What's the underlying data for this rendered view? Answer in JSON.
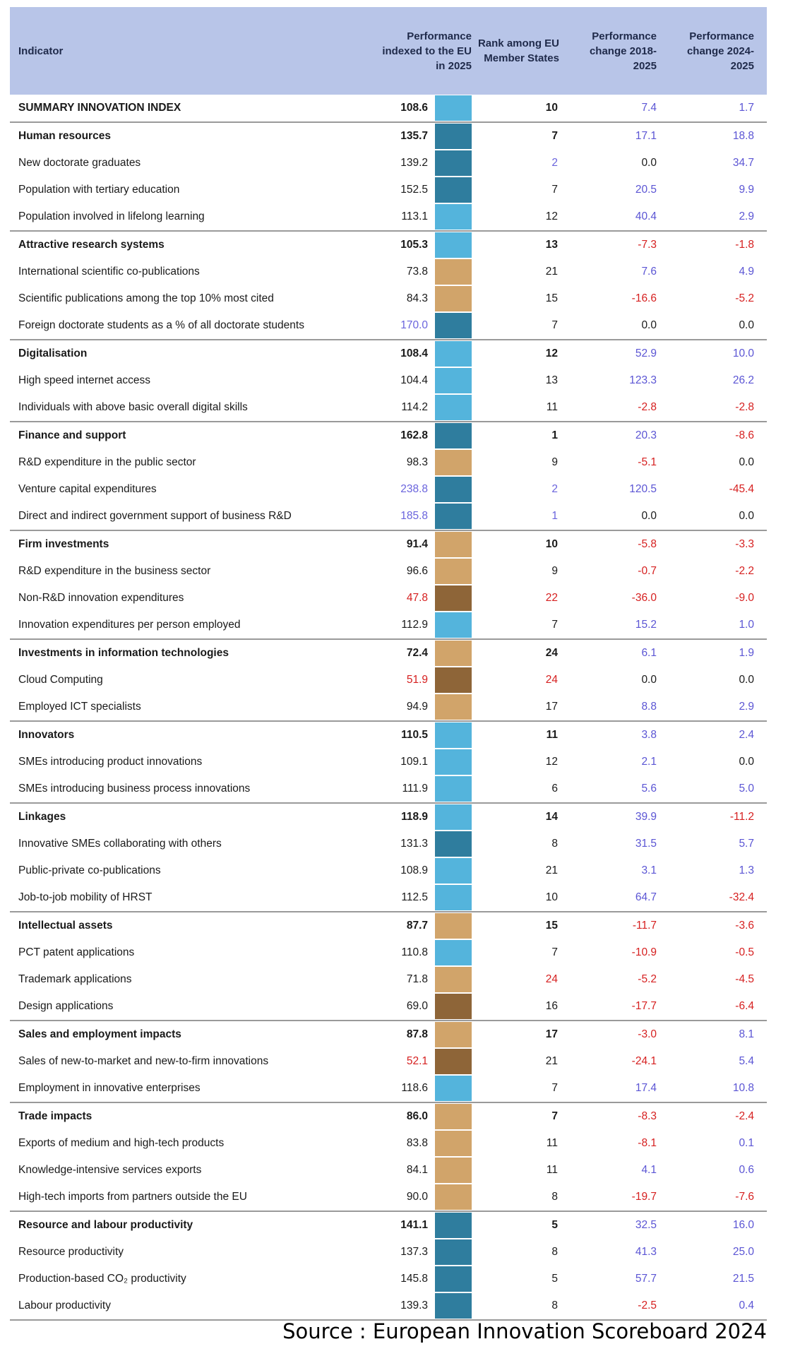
{
  "table": {
    "headers": {
      "indicator": "Indicator",
      "performance": "Performance indexed to the EU in 2025",
      "rank": "Rank among EU Member States",
      "change_2018": "Performance change 2018-2025",
      "change_2024": "Performance change 2024-2025"
    },
    "colors": {
      "header_bg": "#b8c5e8",
      "light_blue": "#54b4dc",
      "dark_blue": "#2f7d9e",
      "light_brown": "#d1a46a",
      "dark_brown": "#8e6538",
      "positive_text": "#5b55d4",
      "negative_text": "#d62020"
    },
    "rows": [
      {
        "name": "SUMMARY INNOVATION INDEX",
        "kind": "summary",
        "perf": "108.6",
        "perf_color": "",
        "bar": "light_blue",
        "rank": "10",
        "rank_color": "",
        "ch1": "7.4",
        "ch2": "1.7"
      },
      {
        "name": "Human resources",
        "kind": "group",
        "perf": "135.7",
        "perf_color": "",
        "bar": "dark_blue",
        "rank": "7",
        "rank_color": "",
        "ch1": "17.1",
        "ch2": "18.8"
      },
      {
        "name": "New doctorate graduates",
        "kind": "item",
        "perf": "139.2",
        "perf_color": "",
        "bar": "dark_blue",
        "rank": "2",
        "rank_color": "hi",
        "ch1": "0.0",
        "ch2": "34.7"
      },
      {
        "name": "Population with tertiary education",
        "kind": "item",
        "perf": "152.5",
        "perf_color": "",
        "bar": "dark_blue",
        "rank": "7",
        "rank_color": "",
        "ch1": "20.5",
        "ch2": "9.9"
      },
      {
        "name": "Population involved in lifelong learning",
        "kind": "item",
        "perf": "113.1",
        "perf_color": "",
        "bar": "light_blue",
        "rank": "12",
        "rank_color": "",
        "ch1": "40.4",
        "ch2": "2.9"
      },
      {
        "name": "Attractive research systems",
        "kind": "group",
        "perf": "105.3",
        "perf_color": "",
        "bar": "light_blue",
        "rank": "13",
        "rank_color": "",
        "ch1": "-7.3",
        "ch2": "-1.8"
      },
      {
        "name": "International scientific co-publications",
        "kind": "item",
        "perf": "73.8",
        "perf_color": "",
        "bar": "light_brown",
        "rank": "21",
        "rank_color": "",
        "ch1": "7.6",
        "ch2": "4.9"
      },
      {
        "name": "Scientific publications among the top 10% most cited",
        "kind": "item",
        "perf": "84.3",
        "perf_color": "",
        "bar": "light_brown",
        "rank": "15",
        "rank_color": "",
        "ch1": "-16.6",
        "ch2": "-5.2"
      },
      {
        "name": "Foreign doctorate students as a % of all doctorate students",
        "kind": "item",
        "perf": "170.0",
        "perf_color": "hi",
        "bar": "dark_blue",
        "rank": "7",
        "rank_color": "",
        "ch1": "0.0",
        "ch2": "0.0"
      },
      {
        "name": "Digitalisation",
        "kind": "group",
        "perf": "108.4",
        "perf_color": "",
        "bar": "light_blue",
        "rank": "12",
        "rank_color": "",
        "ch1": "52.9",
        "ch2": "10.0"
      },
      {
        "name": "High speed internet access",
        "kind": "item",
        "perf": "104.4",
        "perf_color": "",
        "bar": "light_blue",
        "rank": "13",
        "rank_color": "",
        "ch1": "123.3",
        "ch2": "26.2"
      },
      {
        "name": "Individuals with above basic overall digital skills",
        "kind": "item",
        "perf": "114.2",
        "perf_color": "",
        "bar": "light_blue",
        "rank": "11",
        "rank_color": "",
        "ch1": "-2.8",
        "ch2": "-2.8"
      },
      {
        "name": "Finance and support",
        "kind": "group",
        "perf": "162.8",
        "perf_color": "",
        "bar": "dark_blue",
        "rank": "1",
        "rank_color": "",
        "ch1": "20.3",
        "ch2": "-8.6"
      },
      {
        "name": "R&D expenditure in the public sector",
        "kind": "item",
        "perf": "98.3",
        "perf_color": "",
        "bar": "light_brown",
        "rank": "9",
        "rank_color": "",
        "ch1": "-5.1",
        "ch2": "0.0"
      },
      {
        "name": "Venture capital expenditures",
        "kind": "item",
        "perf": "238.8",
        "perf_color": "hi",
        "bar": "dark_blue",
        "rank": "2",
        "rank_color": "hi",
        "ch1": "120.5",
        "ch2": "-45.4"
      },
      {
        "name": "Direct and indirect government support of business R&D",
        "kind": "item",
        "perf": "185.8",
        "perf_color": "hi",
        "bar": "dark_blue",
        "rank": "1",
        "rank_color": "hi",
        "ch1": "0.0",
        "ch2": "0.0"
      },
      {
        "name": "Firm investments",
        "kind": "group",
        "perf": "91.4",
        "perf_color": "",
        "bar": "light_brown",
        "rank": "10",
        "rank_color": "",
        "ch1": "-5.8",
        "ch2": "-3.3"
      },
      {
        "name": "R&D expenditure in the business sector",
        "kind": "item",
        "perf": "96.6",
        "perf_color": "",
        "bar": "light_brown",
        "rank": "9",
        "rank_color": "",
        "ch1": "-0.7",
        "ch2": "-2.2"
      },
      {
        "name": "Non-R&D innovation expenditures",
        "kind": "item",
        "perf": "47.8",
        "perf_color": "lo",
        "bar": "dark_brown",
        "rank": "22",
        "rank_color": "lo",
        "ch1": "-36.0",
        "ch2": "-9.0"
      },
      {
        "name": "Innovation expenditures per person employed",
        "kind": "item",
        "perf": "112.9",
        "perf_color": "",
        "bar": "light_blue",
        "rank": "7",
        "rank_color": "",
        "ch1": "15.2",
        "ch2": "1.0"
      },
      {
        "name": "Investments in information technologies",
        "kind": "group",
        "perf": "72.4",
        "perf_color": "",
        "bar": "light_brown",
        "rank": "24",
        "rank_color": "",
        "ch1": "6.1",
        "ch2": "1.9"
      },
      {
        "name": "Cloud Computing",
        "kind": "item",
        "perf": "51.9",
        "perf_color": "lo",
        "bar": "dark_brown",
        "rank": "24",
        "rank_color": "lo",
        "ch1": "0.0",
        "ch2": "0.0"
      },
      {
        "name": "Employed ICT specialists",
        "kind": "item",
        "perf": "94.9",
        "perf_color": "",
        "bar": "light_brown",
        "rank": "17",
        "rank_color": "",
        "ch1": "8.8",
        "ch2": "2.9"
      },
      {
        "name": "Innovators",
        "kind": "group",
        "perf": "110.5",
        "perf_color": "",
        "bar": "light_blue",
        "rank": "11",
        "rank_color": "",
        "ch1": "3.8",
        "ch2": "2.4"
      },
      {
        "name": "SMEs introducing product innovations",
        "kind": "item",
        "perf": "109.1",
        "perf_color": "",
        "bar": "light_blue",
        "rank": "12",
        "rank_color": "",
        "ch1": "2.1",
        "ch2": "0.0"
      },
      {
        "name": "SMEs introducing business process innovations",
        "kind": "item",
        "perf": "111.9",
        "perf_color": "",
        "bar": "light_blue",
        "rank": "6",
        "rank_color": "",
        "ch1": "5.6",
        "ch2": "5.0"
      },
      {
        "name": "Linkages",
        "kind": "group",
        "perf": "118.9",
        "perf_color": "",
        "bar": "light_blue",
        "rank": "14",
        "rank_color": "",
        "ch1": "39.9",
        "ch2": "-11.2"
      },
      {
        "name": "Innovative SMEs collaborating with others",
        "kind": "item",
        "perf": "131.3",
        "perf_color": "",
        "bar": "dark_blue",
        "rank": "8",
        "rank_color": "",
        "ch1": "31.5",
        "ch2": "5.7"
      },
      {
        "name": "Public-private co-publications",
        "kind": "item",
        "perf": "108.9",
        "perf_color": "",
        "bar": "light_blue",
        "rank": "21",
        "rank_color": "",
        "ch1": "3.1",
        "ch2": "1.3"
      },
      {
        "name": "Job-to-job mobility of HRST",
        "kind": "item",
        "perf": "112.5",
        "perf_color": "",
        "bar": "light_blue",
        "rank": "10",
        "rank_color": "",
        "ch1": "64.7",
        "ch2": "-32.4"
      },
      {
        "name": "Intellectual assets",
        "kind": "group",
        "perf": "87.7",
        "perf_color": "",
        "bar": "light_brown",
        "rank": "15",
        "rank_color": "",
        "ch1": "-11.7",
        "ch2": "-3.6"
      },
      {
        "name": "PCT patent applications",
        "kind": "item",
        "perf": "110.8",
        "perf_color": "",
        "bar": "light_blue",
        "rank": "7",
        "rank_color": "",
        "ch1": "-10.9",
        "ch2": "-0.5"
      },
      {
        "name": "Trademark applications",
        "kind": "item",
        "perf": "71.8",
        "perf_color": "",
        "bar": "light_brown",
        "rank": "24",
        "rank_color": "lo",
        "ch1": "-5.2",
        "ch2": "-4.5"
      },
      {
        "name": "Design applications",
        "kind": "item",
        "perf": "69.0",
        "perf_color": "",
        "bar": "dark_brown",
        "rank": "16",
        "rank_color": "",
        "ch1": "-17.7",
        "ch2": "-6.4"
      },
      {
        "name": "Sales and employment impacts",
        "kind": "group",
        "perf": "87.8",
        "perf_color": "",
        "bar": "light_brown",
        "rank": "17",
        "rank_color": "",
        "ch1": "-3.0",
        "ch2": "8.1"
      },
      {
        "name": "Sales of new-to-market and new-to-firm innovations",
        "kind": "item",
        "perf": "52.1",
        "perf_color": "lo",
        "bar": "dark_brown",
        "rank": "21",
        "rank_color": "",
        "ch1": "-24.1",
        "ch2": "5.4"
      },
      {
        "name": "Employment in innovative enterprises",
        "kind": "item",
        "perf": "118.6",
        "perf_color": "",
        "bar": "light_blue",
        "rank": "7",
        "rank_color": "",
        "ch1": "17.4",
        "ch2": "10.8"
      },
      {
        "name": "Trade impacts",
        "kind": "group",
        "perf": "86.0",
        "perf_color": "",
        "bar": "light_brown",
        "rank": "7",
        "rank_color": "",
        "ch1": "-8.3",
        "ch2": "-2.4"
      },
      {
        "name": "Exports of medium and high-tech products",
        "kind": "item",
        "perf": "83.8",
        "perf_color": "",
        "bar": "light_brown",
        "rank": "11",
        "rank_color": "",
        "ch1": "-8.1",
        "ch2": "0.1"
      },
      {
        "name": "Knowledge-intensive services exports",
        "kind": "item",
        "perf": "84.1",
        "perf_color": "",
        "bar": "light_brown",
        "rank": "11",
        "rank_color": "",
        "ch1": "4.1",
        "ch2": "0.6"
      },
      {
        "name": "High-tech imports from partners outside the EU",
        "kind": "item",
        "perf": "90.0",
        "perf_color": "",
        "bar": "light_brown",
        "rank": "8",
        "rank_color": "",
        "ch1": "-19.7",
        "ch2": "-7.6"
      },
      {
        "name": "Resource and labour productivity",
        "kind": "group",
        "perf": "141.1",
        "perf_color": "",
        "bar": "dark_blue",
        "rank": "5",
        "rank_color": "",
        "ch1": "32.5",
        "ch2": "16.0"
      },
      {
        "name": "Resource productivity",
        "kind": "item",
        "perf": "137.3",
        "perf_color": "",
        "bar": "dark_blue",
        "rank": "8",
        "rank_color": "",
        "ch1": "41.3",
        "ch2": "25.0"
      },
      {
        "name": "Production-based CO₂ productivity",
        "kind": "item",
        "perf": "145.8",
        "perf_color": "",
        "bar": "dark_blue",
        "rank": "5",
        "rank_color": "",
        "ch1": "57.7",
        "ch2": "21.5"
      },
      {
        "name": "Labour productivity",
        "kind": "item",
        "perf": "139.3",
        "perf_color": "",
        "bar": "dark_blue",
        "rank": "8",
        "rank_color": "",
        "ch1": "-2.5",
        "ch2": "0.4"
      }
    ]
  },
  "source": "Source : European Innovation Scoreboard 2024"
}
